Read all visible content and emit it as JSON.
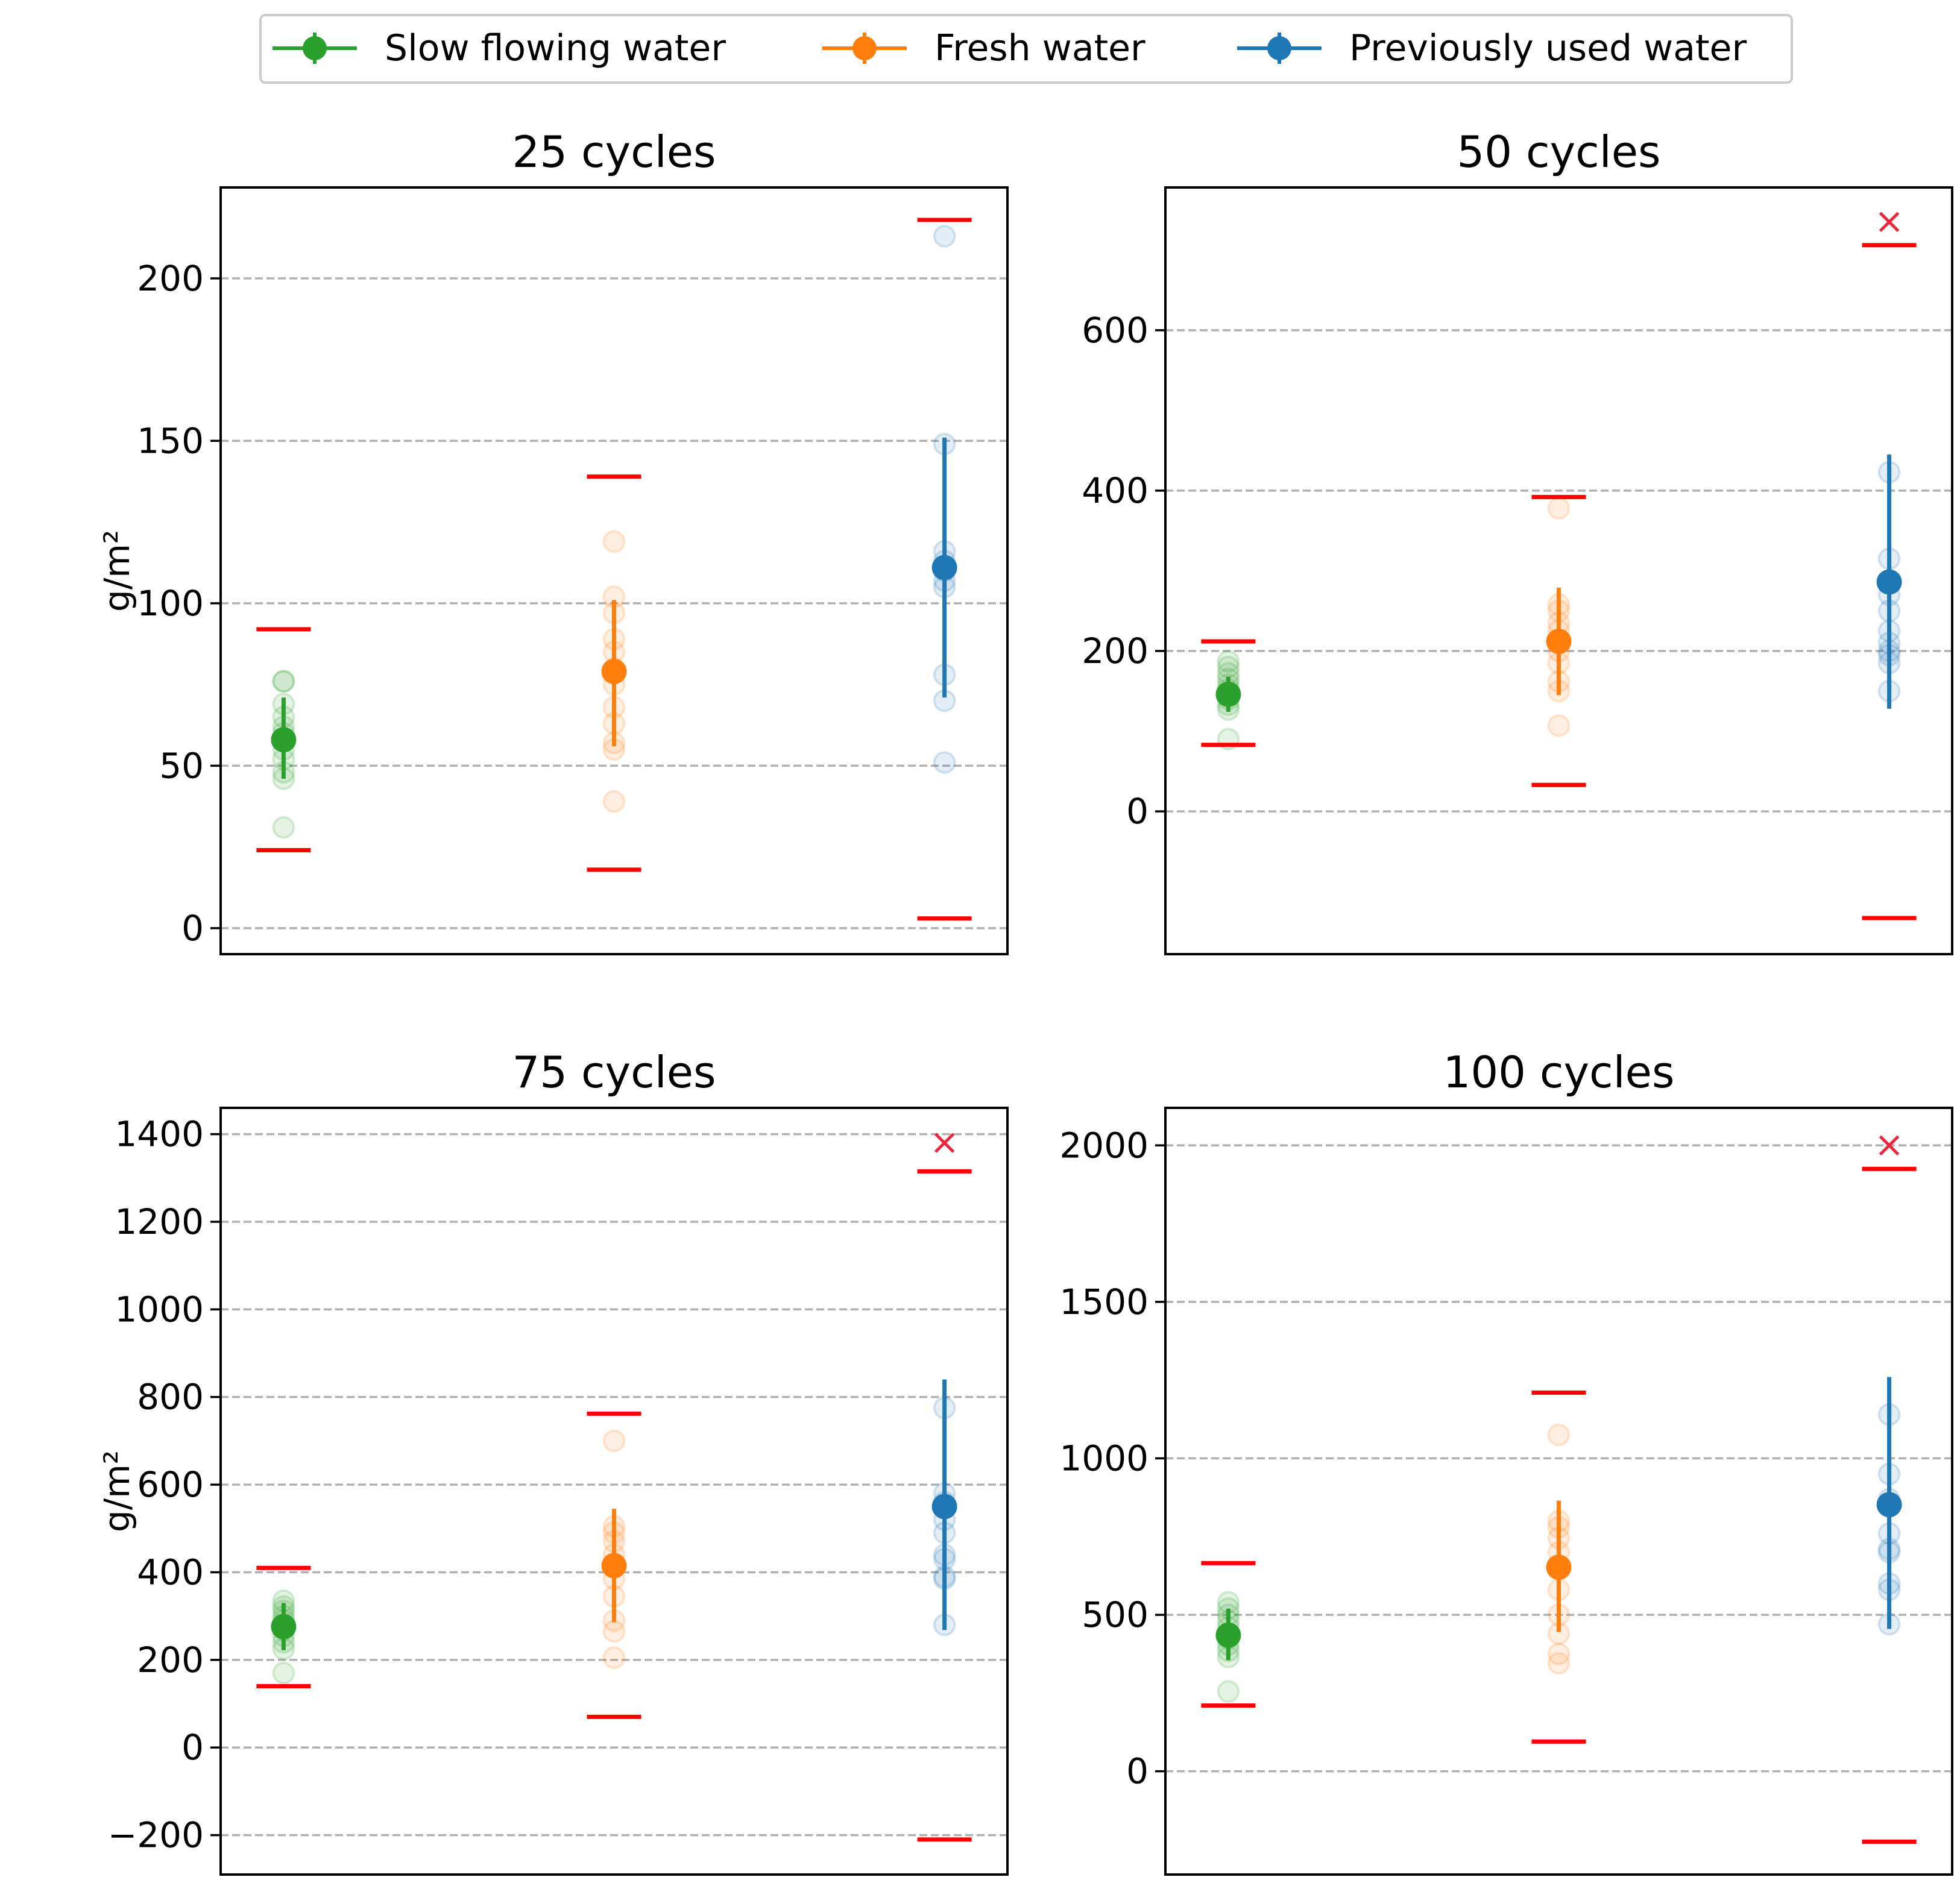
{
  "legend": {
    "placement": "top-center",
    "entries": [
      {
        "label": "Slow flowing water",
        "color": "#2ca02c"
      },
      {
        "label": "Fresh water",
        "color": "#ff7f0e"
      },
      {
        "label": "Previously used water",
        "color": "#1f77b4"
      }
    ]
  },
  "colors": {
    "slow": "#2ca02c",
    "fresh": "#ff7f0e",
    "used": "#1f77b4",
    "limit": "#ff0000",
    "outlier": "#e8283c",
    "grid": "#b0b0b0"
  },
  "chart_data": [
    {
      "type": "scatter",
      "title": "25 cycles",
      "ylabel": "g/m²",
      "ylim": [
        -8,
        228
      ],
      "yticks": [
        0,
        50,
        100,
        150,
        200
      ],
      "yticklabels": [
        "0",
        "50",
        "100",
        "150",
        "200"
      ],
      "grid": true,
      "series": [
        {
          "name": "Slow flowing water",
          "mean": 58,
          "err_low": 46,
          "err_high": 71,
          "limit_low": 24,
          "limit_high": 92,
          "points": [
            31,
            46,
            48,
            52,
            55,
            58,
            60,
            62,
            65,
            69,
            76,
            76
          ],
          "outliers": []
        },
        {
          "name": "Fresh water",
          "mean": 79,
          "err_low": 56,
          "err_high": 101,
          "limit_low": 18,
          "limit_high": 139,
          "points": [
            39,
            55,
            57,
            63,
            68,
            75,
            80,
            85,
            89,
            97,
            102,
            119
          ],
          "outliers": []
        },
        {
          "name": "Previously used water",
          "mean": 111,
          "err_low": 71,
          "err_high": 151,
          "limit_low": 3,
          "limit_high": 218,
          "points": [
            51,
            70,
            78,
            105,
            107,
            110,
            113,
            116,
            149,
            213
          ],
          "outliers": []
        }
      ]
    },
    {
      "type": "scatter",
      "title": "50 cycles",
      "ylabel": "",
      "ylim": [
        -178,
        778
      ],
      "yticks": [
        0,
        200,
        400,
        600
      ],
      "yticklabels": [
        "0",
        "200",
        "400",
        "600"
      ],
      "grid": true,
      "series": [
        {
          "name": "Slow flowing water",
          "mean": 146,
          "err_low": 124,
          "err_high": 168,
          "limit_low": 83,
          "limit_high": 212,
          "points": [
            90,
            127,
            133,
            140,
            146,
            152,
            158,
            165,
            172,
            180,
            187
          ],
          "outliers": []
        },
        {
          "name": "Fresh water",
          "mean": 212,
          "err_low": 145,
          "err_high": 279,
          "limit_low": 33,
          "limit_high": 392,
          "points": [
            107,
            150,
            162,
            185,
            200,
            212,
            225,
            235,
            250,
            258,
            378
          ],
          "outliers": []
        },
        {
          "name": "Previously used water",
          "mean": 286,
          "err_low": 128,
          "err_high": 445,
          "limit_low": -133,
          "limit_high": 706,
          "points": [
            150,
            185,
            195,
            200,
            210,
            225,
            250,
            270,
            315,
            423
          ],
          "outliers": [
            735
          ]
        }
      ]
    },
    {
      "type": "scatter",
      "title": "75 cycles",
      "ylabel": "g/m²",
      "ylim": [
        -290,
        1460
      ],
      "yticks": [
        -200,
        0,
        200,
        400,
        600,
        800,
        1000,
        1200,
        1400
      ],
      "yticklabels": [
        "−200",
        "0",
        "200",
        "400",
        "600",
        "800",
        "1000",
        "1200",
        "1400"
      ],
      "grid": true,
      "series": [
        {
          "name": "Slow flowing water",
          "mean": 276,
          "err_low": 222,
          "err_high": 330,
          "limit_low": 140,
          "limit_high": 410,
          "points": [
            170,
            225,
            240,
            255,
            268,
            280,
            290,
            300,
            312,
            322,
            335
          ],
          "outliers": []
        },
        {
          "name": "Fresh water",
          "mean": 415,
          "err_low": 286,
          "err_high": 545,
          "limit_low": 70,
          "limit_high": 762,
          "points": [
            205,
            265,
            290,
            345,
            385,
            420,
            440,
            470,
            490,
            505,
            700
          ],
          "outliers": []
        },
        {
          "name": "Previously used water",
          "mean": 550,
          "err_low": 268,
          "err_high": 840,
          "limit_low": -210,
          "limit_high": 1315,
          "points": [
            280,
            385,
            390,
            430,
            440,
            490,
            520,
            560,
            580,
            775
          ],
          "outliers": [
            1380
          ]
        }
      ]
    },
    {
      "type": "scatter",
      "title": "100 cycles",
      "ylabel": "",
      "ylim": [
        -330,
        2120
      ],
      "yticks": [
        0,
        500,
        1000,
        1500,
        2000
      ],
      "yticklabels": [
        "0",
        "500",
        "1000",
        "1500",
        "2000"
      ],
      "grid": true,
      "series": [
        {
          "name": "Slow flowing water",
          "mean": 435,
          "err_low": 355,
          "err_high": 520,
          "limit_low": 210,
          "limit_high": 665,
          "points": [
            255,
            365,
            385,
            405,
            425,
            440,
            460,
            480,
            500,
            520,
            540
          ],
          "outliers": []
        },
        {
          "name": "Fresh water",
          "mean": 652,
          "err_low": 445,
          "err_high": 865,
          "limit_low": 95,
          "limit_high": 1210,
          "points": [
            345,
            375,
            440,
            500,
            580,
            650,
            700,
            745,
            780,
            800,
            1075
          ],
          "outliers": []
        },
        {
          "name": "Previously used water",
          "mean": 852,
          "err_low": 455,
          "err_high": 1260,
          "limit_low": -225,
          "limit_high": 1925,
          "points": [
            470,
            580,
            600,
            700,
            710,
            760,
            870,
            950,
            1140
          ],
          "outliers": [
            2000
          ]
        }
      ]
    }
  ]
}
